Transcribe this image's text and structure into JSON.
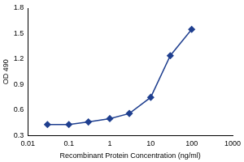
{
  "chart_data": {
    "type": "line",
    "x_label": "Recombinant Protein Concentration (ng/ml)",
    "y_label": "OD 490",
    "x": [
      0.03,
      0.1,
      0.3,
      1,
      3,
      10,
      30,
      100
    ],
    "values": [
      0.43,
      0.43,
      0.46,
      0.5,
      0.56,
      0.75,
      1.24,
      1.55
    ],
    "color": "#1f3f8f",
    "marker": "diamond",
    "line_style": "solid",
    "log": "x",
    "xlim": [
      0.01,
      1000
    ],
    "xticks": [
      0.01,
      0.1,
      1,
      10,
      100,
      1000
    ],
    "ylim": [
      0.3,
      1.8
    ],
    "yticks": [
      0.3,
      0.6,
      0.9,
      1.2,
      1.5,
      1.8
    ],
    "grid": false
  }
}
